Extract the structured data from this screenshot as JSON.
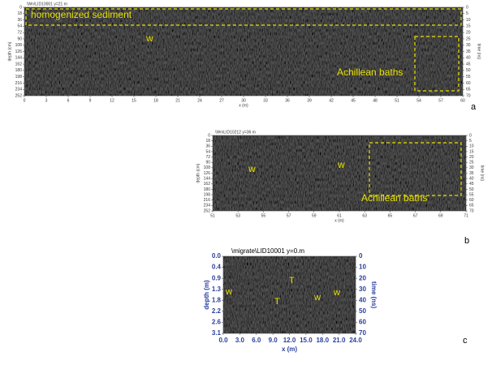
{
  "panels": [
    {
      "title": "\\Wn\\LID10001 y=21 m",
      "ylabel": "depth (cm)",
      "y2label": "time (ns)",
      "xlabel": "x (m)",
      "yticks": [
        "0",
        "18",
        "36",
        "54",
        "72",
        "90",
        "108",
        "126",
        "144",
        "162",
        "180",
        "198",
        "216",
        "234",
        "252"
      ],
      "y2ticks": [
        "0",
        "5",
        "10",
        "15",
        "20",
        "25",
        "30",
        "35",
        "40",
        "45",
        "50",
        "55",
        "60",
        "65",
        "70"
      ],
      "xticks": [
        "0",
        "3",
        "6",
        "9",
        "12",
        "15",
        "18",
        "21",
        "24",
        "27",
        "30",
        "33",
        "36",
        "39",
        "42",
        "45",
        "48",
        "51",
        "54",
        "57",
        "60"
      ],
      "annotations": [
        "homogenized sediment",
        "w",
        "Achillean baths"
      ],
      "letter": "a"
    },
    {
      "title": "\\Wn\\LID10212 y=36 m",
      "ylabel": "depth (cm)",
      "y2label": "time (ns)",
      "xlabel": "x (m)",
      "yticks": [
        "0",
        "18",
        "36",
        "54",
        "72",
        "90",
        "108",
        "126",
        "144",
        "162",
        "180",
        "198",
        "216",
        "234",
        "252"
      ],
      "y2ticks": [
        "0",
        "5",
        "10",
        "15",
        "20",
        "25",
        "30",
        "35",
        "40",
        "45",
        "50",
        "55",
        "60",
        "65",
        "70"
      ],
      "xticks": [
        "51",
        "53",
        "55",
        "57",
        "59",
        "61",
        "63",
        "65",
        "67",
        "69",
        "71"
      ],
      "annotations": [
        "w",
        "w",
        "Achillean baths"
      ],
      "letter": "b"
    },
    {
      "title": "\\migrate\\LID10001   y=0.m",
      "ylabel": "depth (m)",
      "y2label": "time (ns)",
      "xlabel": "x (m)",
      "yticks": [
        "0.0",
        "0.4",
        "0.9",
        "1.3",
        "1.8",
        "2.2",
        "2.6",
        "3.1"
      ],
      "y2ticks": [
        "0",
        "10",
        "20",
        "30",
        "40",
        "50",
        "60",
        "70"
      ],
      "xticks": [
        "0.0",
        "3.0",
        "6.0",
        "9.0",
        "12.0",
        "15.0",
        "18.0",
        "21.0",
        "24.0"
      ],
      "annotations": [
        "w",
        "T",
        "T",
        "w",
        "w"
      ],
      "letter": "c"
    }
  ]
}
